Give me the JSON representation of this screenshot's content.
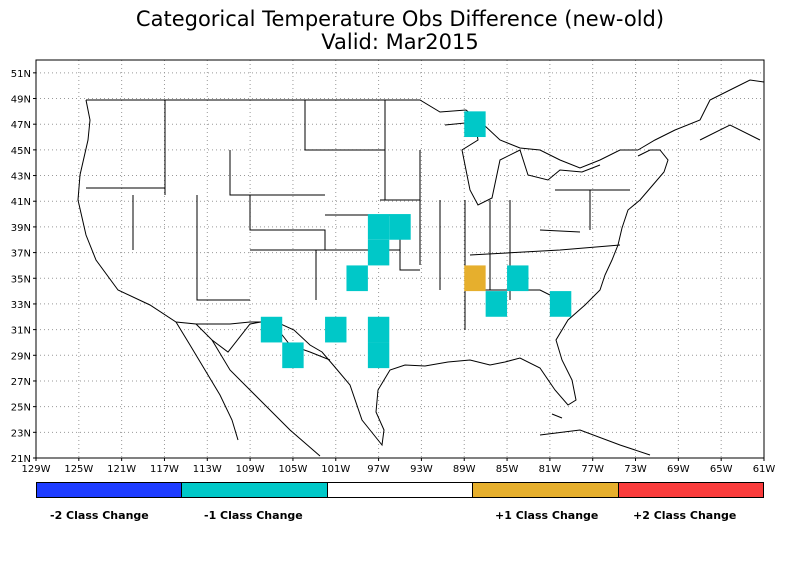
{
  "title": {
    "line1": "Categorical Temperature Obs Difference (new-old)",
    "line2": "Valid: Mar2015"
  },
  "map": {
    "lon_range": [
      -129,
      -61
    ],
    "lat_range": [
      21,
      52
    ],
    "lat_ticks": [
      "21N",
      "23N",
      "25N",
      "27N",
      "29N",
      "31N",
      "33N",
      "35N",
      "37N",
      "39N",
      "41N",
      "43N",
      "45N",
      "47N",
      "49N",
      "51N"
    ],
    "lon_ticks": [
      "129W",
      "125W",
      "121W",
      "117W",
      "113W",
      "109W",
      "105W",
      "101W",
      "97W",
      "93W",
      "89W",
      "85W",
      "81W",
      "77W",
      "73W",
      "69W",
      "65W",
      "61W"
    ],
    "grid": "dotted",
    "cells": [
      {
        "lat": 47,
        "lon": -88,
        "category": -1
      },
      {
        "lat": 39,
        "lon": -97,
        "category": -1
      },
      {
        "lat": 39,
        "lon": -95,
        "category": -1
      },
      {
        "lat": 37,
        "lon": -97,
        "category": -1
      },
      {
        "lat": 35,
        "lon": -99,
        "category": -1
      },
      {
        "lat": 35,
        "lon": -88,
        "category": 1
      },
      {
        "lat": 35,
        "lon": -84,
        "category": -1
      },
      {
        "lat": 33,
        "lon": -86,
        "category": -1
      },
      {
        "lat": 33,
        "lon": -80,
        "category": -1
      },
      {
        "lat": 31,
        "lon": -107,
        "category": -1
      },
      {
        "lat": 31,
        "lon": -101,
        "category": -1
      },
      {
        "lat": 31,
        "lon": -97,
        "category": -1
      },
      {
        "lat": 29,
        "lon": -105,
        "category": -1
      },
      {
        "lat": 29,
        "lon": -97,
        "category": -1
      }
    ]
  },
  "legend": {
    "colors": [
      "#1e3cff",
      "#00c8c8",
      "#ffffff",
      "#e6af2d",
      "#fa3c3c"
    ],
    "labels": [
      "-2 Class Change",
      "-1 Class Change",
      "+1 Class Change",
      "+2 Class Change"
    ]
  }
}
